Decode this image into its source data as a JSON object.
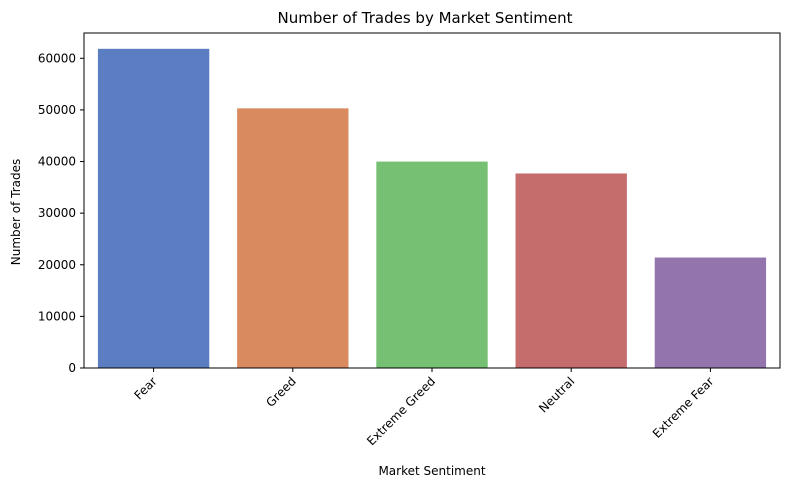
{
  "chart_data": {
    "type": "bar",
    "title": "Number of Trades by Market Sentiment",
    "xlabel": "Market Sentiment",
    "ylabel": "Number of Trades",
    "categories": [
      "Fear",
      "Greed",
      "Extreme Greed",
      "Neutral",
      "Extreme Fear"
    ],
    "values": [
      61837,
      50303,
      39992,
      37686,
      21400
    ],
    "colors": [
      "#5b7ec2",
      "#d98b5f",
      "#75c072",
      "#c56d6d",
      "#9474ad"
    ],
    "ylim": [
      0,
      64900
    ],
    "yticks": [
      0,
      10000,
      20000,
      30000,
      40000,
      50000,
      60000
    ],
    "ytick_labels": [
      "0",
      "10000",
      "20000",
      "30000",
      "40000",
      "50000",
      "60000"
    ],
    "grid": false,
    "legend": "none"
  }
}
